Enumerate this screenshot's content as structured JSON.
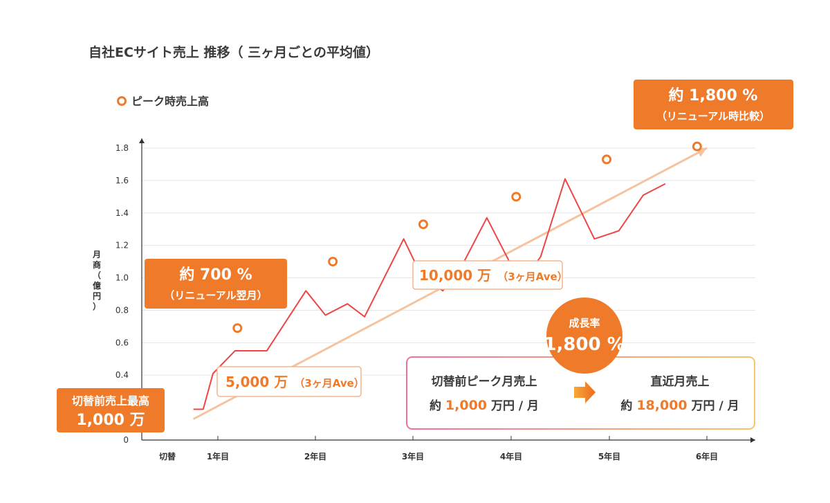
{
  "chart_data": {
    "type": "line",
    "title": "自社ECサイト売上 推移（ 三ヶ月ごとの平均値）",
    "ylabel": "月商（億円）",
    "ylim": [
      0,
      1.8
    ],
    "yticks": [
      "0",
      "0.4",
      "0.6",
      "0.8",
      "1.0",
      "1.2",
      "1.4",
      "1.6",
      "1.8"
    ],
    "xlabels": [
      "切替",
      "1年目",
      "2年目",
      "3年目",
      "4年目",
      "5年目",
      "6年目"
    ],
    "series": [
      {
        "type": "line",
        "color": "#ee4545",
        "points": [
          {
            "x": -0.5,
            "y": 0.19
          },
          {
            "x": -0.3,
            "y": 0.19
          },
          {
            "x": -0.1,
            "y": 0.41
          },
          {
            "x": 0.35,
            "y": 0.55
          },
          {
            "x": 1.0,
            "y": 0.55
          },
          {
            "x": 1.8,
            "y": 0.92
          },
          {
            "x": 2.2,
            "y": 0.77
          },
          {
            "x": 2.65,
            "y": 0.84
          },
          {
            "x": 3.0,
            "y": 0.76
          },
          {
            "x": 3.8,
            "y": 1.24
          },
          {
            "x": 4.15,
            "y": 1.02
          },
          {
            "x": 4.6,
            "y": 0.92
          },
          {
            "x": 5.0,
            "y": 1.08
          },
          {
            "x": 5.5,
            "y": 1.37
          },
          {
            "x": 6.2,
            "y": 0.96
          },
          {
            "x": 6.6,
            "y": 1.13
          },
          {
            "x": 7.1,
            "y": 1.61
          },
          {
            "x": 7.7,
            "y": 1.24
          },
          {
            "x": 8.2,
            "y": 1.29
          },
          {
            "x": 8.7,
            "y": 1.51
          },
          {
            "x": 9.15,
            "y": 1.58
          }
        ]
      },
      {
        "name": "ピーク時売上高",
        "type": "scatter",
        "color": "#ef7a2a",
        "points": [
          {
            "x": 0.4,
            "y": 0.69
          },
          {
            "x": 2.35,
            "y": 1.1
          },
          {
            "x": 4.2,
            "y": 1.33
          },
          {
            "x": 6.1,
            "y": 1.5
          },
          {
            "x": 7.95,
            "y": 1.73
          },
          {
            "x": 9.8,
            "y": 1.81
          }
        ]
      },
      {
        "type": "trend",
        "color": "#f6c3a0",
        "points": [
          {
            "x": -0.5,
            "y": 0.13
          },
          {
            "x": 10.0,
            "y": 1.8
          }
        ]
      }
    ],
    "legend": {
      "label": "ピーク時売上高",
      "position": "top-left"
    }
  },
  "callouts": {
    "start": {
      "line1": "切替前売上最高",
      "line2": "1,000 万"
    },
    "c700": {
      "line1": "約 700 %",
      "line2": "（リニューアル翌月）"
    },
    "c1800": {
      "line1": "約 1,800 %",
      "line2": "（リニューアル時比較）"
    },
    "ave5000": {
      "big": "5,000 万",
      "small": "（3ヶ月Ave）"
    },
    "ave10000": {
      "big": "10,000 万",
      "small": "（3ヶ月Ave）"
    }
  },
  "comparison": {
    "left_title": "切替前ピーク月売上",
    "left_value": "約 1,000 万円 / 月",
    "right_title": "直近月売上",
    "right_value": "約 18,000 万円 / 月"
  },
  "badge": {
    "top": "成長率",
    "value": "1,800 %"
  }
}
